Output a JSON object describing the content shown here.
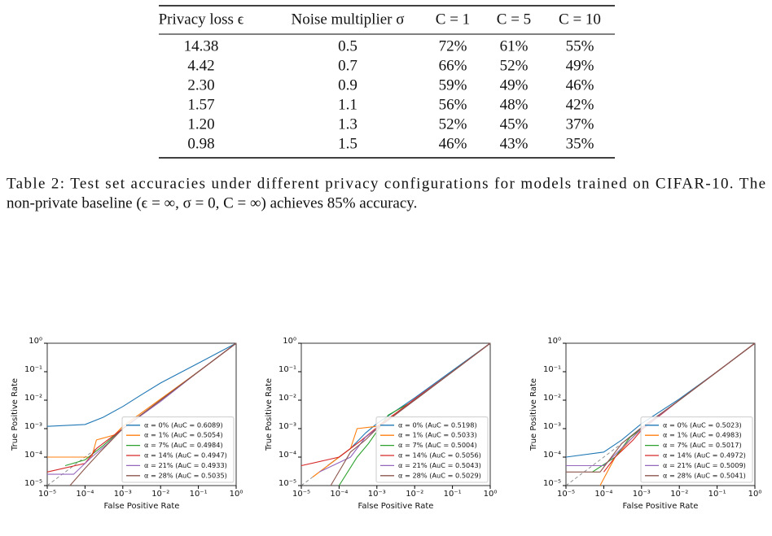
{
  "table": {
    "headers": [
      "Privacy loss ϵ",
      "Noise multiplier σ",
      "C = 1",
      "C = 5",
      "C = 10"
    ],
    "rows": [
      [
        "14.38",
        "0.5",
        "72%",
        "61%",
        "55%"
      ],
      [
        "4.42",
        "0.7",
        "66%",
        "52%",
        "49%"
      ],
      [
        "2.30",
        "0.9",
        "59%",
        "49%",
        "46%"
      ],
      [
        "1.57",
        "1.1",
        "56%",
        "48%",
        "42%"
      ],
      [
        "1.20",
        "1.3",
        "52%",
        "45%",
        "37%"
      ],
      [
        "0.98",
        "1.5",
        "46%",
        "43%",
        "35%"
      ]
    ]
  },
  "caption": {
    "lines": [
      "Table 2: Test set accuracies under different privacy configurations for models trained on CIFAR-10. The",
      "non-private baseline (ϵ = ∞, σ = 0, C = ∞) achieves 85% accuracy."
    ]
  },
  "chart_data": [
    {
      "type": "line",
      "xlabel": "False Positive Rate",
      "ylabel": "True Positive Rate",
      "log": true,
      "legend": "lower right",
      "xlim": [
        1e-05,
        1
      ],
      "ylim": [
        1e-05,
        1
      ],
      "xticks": [
        {
          "value": 1e-05,
          "label": "10⁻⁵"
        },
        {
          "value": 0.0001,
          "label": "10⁻⁴"
        },
        {
          "value": 0.001,
          "label": "10⁻³"
        },
        {
          "value": 0.01,
          "label": "10⁻²"
        },
        {
          "value": 0.1,
          "label": "10⁻¹"
        },
        {
          "value": 1,
          "label": "10⁰"
        }
      ],
      "yticks": [
        {
          "value": 1e-05,
          "label": "10⁻⁵"
        },
        {
          "value": 0.0001,
          "label": "10⁻⁴"
        },
        {
          "value": 0.001,
          "label": "10⁻³"
        },
        {
          "value": 0.01,
          "label": "10⁻²"
        },
        {
          "value": 0.1,
          "label": "10⁻¹"
        },
        {
          "value": 1,
          "label": "10⁰"
        }
      ],
      "series": [
        {
          "name": "α = 0% (AuC = 0.6089)",
          "color": "#1f77b4",
          "x": [
            1e-05,
            0.0001,
            0.0003,
            0.001,
            0.003,
            0.01,
            0.1,
            1
          ],
          "values": [
            0.0012,
            0.0014,
            0.0025,
            0.006,
            0.015,
            0.04,
            0.2,
            1
          ]
        },
        {
          "name": "α = 1% (AuC = 0.5054)",
          "color": "#ff7f0e",
          "x": [
            1e-05,
            0.00015,
            0.0002,
            0.0006,
            0.001,
            0.01,
            0.1,
            1
          ],
          "values": [
            0.0001,
            0.0001,
            0.0004,
            0.0006,
            0.0012,
            0.011,
            0.1,
            1
          ]
        },
        {
          "name": "α = 7% (AuC = 0.4984)",
          "color": "#2ca02c",
          "x": [
            3e-05,
            0.0001,
            0.0003,
            0.001,
            0.01,
            0.1,
            1
          ],
          "values": [
            5e-05,
            8e-05,
            0.00025,
            0.001,
            0.01,
            0.1,
            1
          ]
        },
        {
          "name": "α = 14% (AuC = 0.4947)",
          "color": "#d62728",
          "x": [
            1e-05,
            0.0001,
            0.0002,
            0.001,
            0.01,
            0.1,
            1
          ],
          "values": [
            3e-05,
            6e-05,
            0.0002,
            0.001,
            0.01,
            0.1,
            1
          ]
        },
        {
          "name": "α = 21% (AuC = 0.4933)",
          "color": "#9467bd",
          "x": [
            1e-05,
            5e-05,
            0.00015,
            0.0004,
            0.001,
            0.01,
            0.1,
            1
          ],
          "values": [
            2.5e-05,
            2.5e-05,
            0.0001,
            0.0003,
            0.001,
            0.009,
            0.1,
            1
          ]
        },
        {
          "name": "α = 28% (AuC = 0.5035)",
          "color": "#8c564b",
          "x": [
            4e-05,
            0.0001,
            0.00025,
            0.001,
            0.01,
            0.1,
            1
          ],
          "values": [
            1e-05,
            4e-05,
            0.00015,
            0.001,
            0.01,
            0.1,
            1
          ]
        }
      ]
    },
    {
      "type": "line",
      "xlabel": "False Positive Rate",
      "ylabel": "True Positive Rate",
      "log": true,
      "legend": "lower right",
      "xlim": [
        1e-05,
        1
      ],
      "ylim": [
        1e-05,
        1
      ],
      "xticks": [
        {
          "value": 1e-05,
          "label": "10⁻⁵"
        },
        {
          "value": 0.0001,
          "label": "10⁻⁴"
        },
        {
          "value": 0.001,
          "label": "10⁻³"
        },
        {
          "value": 0.01,
          "label": "10⁻²"
        },
        {
          "value": 0.1,
          "label": "10⁻¹"
        },
        {
          "value": 1,
          "label": "10⁰"
        }
      ],
      "yticks": [
        {
          "value": 1e-05,
          "label": "10⁻⁵"
        },
        {
          "value": 0.0001,
          "label": "10⁻⁴"
        },
        {
          "value": 0.001,
          "label": "10⁻³"
        },
        {
          "value": 0.01,
          "label": "10⁻²"
        },
        {
          "value": 0.1,
          "label": "10⁻¹"
        },
        {
          "value": 1,
          "label": "10⁰"
        }
      ],
      "series": [
        {
          "name": "α = 0% (AuC = 0.5198)",
          "color": "#1f77b4",
          "x": [
            5e-05,
            0.0002,
            0.0005,
            0.001,
            0.01,
            0.1,
            1
          ],
          "values": [
            5e-05,
            0.0002,
            0.0007,
            0.0015,
            0.012,
            0.11,
            1
          ]
        },
        {
          "name": "α = 1% (AuC = 0.5033)",
          "color": "#ff7f0e",
          "x": [
            2e-05,
            0.0002,
            0.0003,
            0.001,
            0.01,
            0.1,
            1
          ],
          "values": [
            2e-05,
            0.0002,
            0.001,
            0.0012,
            0.01,
            0.1,
            1
          ]
        },
        {
          "name": "α = 7% (AuC = 0.5004)",
          "color": "#2ca02c",
          "x": [
            0.0001,
            0.0003,
            0.0006,
            0.002,
            0.01,
            0.1,
            1
          ],
          "values": [
            1e-05,
            0.0001,
            0.0003,
            0.003,
            0.01,
            0.1,
            1
          ]
        },
        {
          "name": "α = 14% (AuC = 0.5056)",
          "color": "#d62728",
          "x": [
            1e-05,
            0.0001,
            0.0004,
            0.001,
            0.01,
            0.1,
            1
          ],
          "values": [
            5e-05,
            0.0001,
            0.0004,
            0.0011,
            0.011,
            0.1,
            1
          ]
        },
        {
          "name": "α = 21% (AuC = 0.5043)",
          "color": "#9467bd",
          "x": [
            3e-05,
            0.0002,
            0.0005,
            0.001,
            0.01,
            0.1,
            1
          ],
          "values": [
            3e-05,
            0.0001,
            0.0005,
            0.001,
            0.01,
            0.1,
            1
          ]
        },
        {
          "name": "α = 28% (AuC = 0.5029)",
          "color": "#8c564b",
          "x": [
            6e-05,
            0.0002,
            0.0005,
            0.001,
            0.01,
            0.1,
            1
          ],
          "values": [
            1e-05,
            0.00015,
            0.0004,
            0.001,
            0.01,
            0.1,
            1
          ]
        }
      ]
    },
    {
      "type": "line",
      "xlabel": "False Positive Rate",
      "ylabel": "True Positive Rate",
      "log": true,
      "legend": "lower right",
      "xlim": [
        1e-05,
        1
      ],
      "ylim": [
        1e-05,
        1
      ],
      "xticks": [
        {
          "value": 1e-05,
          "label": "10⁻⁵"
        },
        {
          "value": 0.0001,
          "label": "10⁻⁴"
        },
        {
          "value": 0.001,
          "label": "10⁻³"
        },
        {
          "value": 0.01,
          "label": "10⁻²"
        },
        {
          "value": 0.1,
          "label": "10⁻¹"
        },
        {
          "value": 1,
          "label": "10⁰"
        }
      ],
      "yticks": [
        {
          "value": 1e-05,
          "label": "10⁻⁵"
        },
        {
          "value": 0.0001,
          "label": "10⁻⁴"
        },
        {
          "value": 0.001,
          "label": "10⁻³"
        },
        {
          "value": 0.01,
          "label": "10⁻²"
        },
        {
          "value": 0.1,
          "label": "10⁻¹"
        },
        {
          "value": 1,
          "label": "10⁰"
        }
      ],
      "series": [
        {
          "name": "α = 0% (AuC = 0.5023)",
          "color": "#1f77b4",
          "x": [
            1e-05,
            0.0001,
            0.0003,
            0.001,
            0.01,
            0.1,
            1
          ],
          "values": [
            0.0001,
            0.00015,
            0.0004,
            0.0015,
            0.011,
            0.1,
            1
          ]
        },
        {
          "name": "α = 1% (AuC = 0.4983)",
          "color": "#ff7f0e",
          "x": [
            8e-05,
            0.0002,
            0.0005,
            0.001,
            0.01,
            0.1,
            1
          ],
          "values": [
            1e-05,
            0.0001,
            0.0004,
            0.001,
            0.01,
            0.1,
            1
          ]
        },
        {
          "name": "α = 7% (AuC = 0.5017)",
          "color": "#2ca02c",
          "x": [
            5e-05,
            0.0002,
            0.0005,
            0.001,
            0.01,
            0.1,
            1
          ],
          "values": [
            3e-05,
            0.0001,
            0.0005,
            0.001,
            0.01,
            0.1,
            1
          ]
        },
        {
          "name": "α = 14% (AuC = 0.4972)",
          "color": "#d62728",
          "x": [
            0.0001,
            0.0002,
            0.0006,
            0.001,
            0.01,
            0.1,
            1
          ],
          "values": [
            3e-05,
            0.0001,
            0.0004,
            0.0009,
            0.01,
            0.1,
            1
          ]
        },
        {
          "name": "α = 21% (AuC = 0.5009)",
          "color": "#9467bd",
          "x": [
            1e-05,
            0.0001,
            0.0004,
            0.001,
            0.01,
            0.1,
            1
          ],
          "values": [
            5e-05,
            5e-05,
            0.0003,
            0.001,
            0.01,
            0.1,
            1
          ]
        },
        {
          "name": "α = 28% (AuC = 0.5041)",
          "color": "#8c564b",
          "x": [
            1e-05,
            8e-05,
            0.0003,
            0.001,
            0.01,
            0.1,
            1
          ],
          "values": [
            3e-05,
            3e-05,
            0.0003,
            0.0011,
            0.01,
            0.1,
            1
          ]
        }
      ]
    }
  ]
}
